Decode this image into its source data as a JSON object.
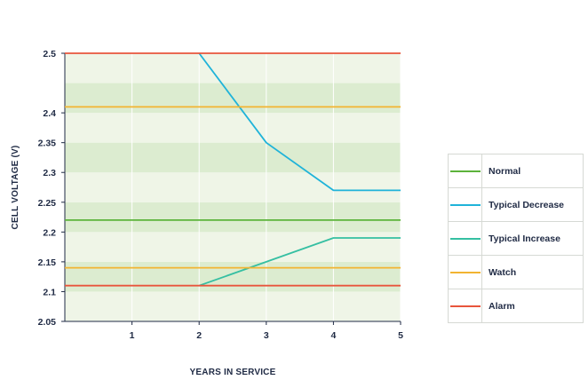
{
  "chart_data": {
    "type": "line",
    "xlabel": "YEARS IN SERVICE",
    "ylabel": "CELL VOLTAGE (V)",
    "xlim": [
      0,
      5
    ],
    "ylim": [
      2.05,
      2.5
    ],
    "x_ticks": [
      "1",
      "2",
      "3",
      "4",
      "5"
    ],
    "y_ticks": [
      "2.5",
      "2.4",
      "2.35",
      "2.3",
      "2.25",
      "2.2",
      "2.15",
      "2.1",
      "2.05"
    ],
    "grid": true,
    "legend_position": "right",
    "series": [
      {
        "name": "Normal",
        "color": "#5cb33b",
        "points": [
          [
            0,
            2.22
          ],
          [
            5,
            2.22
          ]
        ]
      },
      {
        "name": "Typical Decrease",
        "color": "#1fb3d9",
        "points": [
          [
            2,
            2.5
          ],
          [
            3,
            2.35
          ],
          [
            4,
            2.27
          ],
          [
            5,
            2.27
          ]
        ]
      },
      {
        "name": "Typical Increase",
        "color": "#35bfa2",
        "points": [
          [
            2,
            2.11
          ],
          [
            3,
            2.15
          ],
          [
            4,
            2.19
          ],
          [
            5,
            2.19
          ]
        ]
      },
      {
        "name": "Watch",
        "color": "#f2b431",
        "points": [
          [
            0,
            2.41
          ],
          [
            5,
            2.41
          ]
        ],
        "extra_points": [
          [
            0,
            2.14
          ],
          [
            5,
            2.14
          ]
        ]
      },
      {
        "name": "Alarm",
        "color": "#e8553c",
        "points": [
          [
            0,
            2.5
          ],
          [
            5,
            2.5
          ]
        ],
        "extra_points": [
          [
            0,
            2.11
          ],
          [
            5,
            2.11
          ]
        ]
      }
    ]
  },
  "colors": {
    "band_light": "#eff5e7",
    "band_dark": "#dcecd0",
    "grid": "#ffffff",
    "axis": "#1f2a44"
  }
}
